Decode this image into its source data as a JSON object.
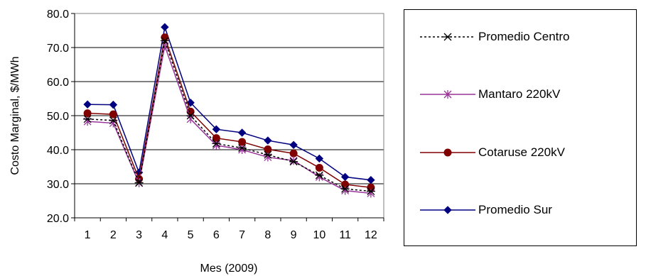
{
  "chart_data": {
    "type": "line",
    "xlabel": "Mes (2009)",
    "ylabel": "Costo Marginal, $/MWh",
    "categories": [
      "1",
      "2",
      "3",
      "4",
      "5",
      "6",
      "7",
      "8",
      "9",
      "10",
      "11",
      "12"
    ],
    "ylim": [
      20.0,
      80.0
    ],
    "yticks": [
      "20.0",
      "30.0",
      "40.0",
      "50.0",
      "60.0",
      "70.0",
      "80.0"
    ],
    "grid": "horizontal",
    "legend_position": "right",
    "series": [
      {
        "name": "Promedio Centro",
        "color": "#000000",
        "marker": "x-star",
        "dashed": true,
        "values": [
          49.0,
          48.6,
          30.3,
          72.0,
          50.0,
          41.8,
          40.5,
          38.5,
          36.5,
          32.5,
          28.5,
          27.8
        ]
      },
      {
        "name": "Mantaro 220kV",
        "color": "#993399",
        "marker": "asterisk",
        "dashed": false,
        "values": [
          48.3,
          47.8,
          30.2,
          70.5,
          49.0,
          41.3,
          40.0,
          37.8,
          36.8,
          32.0,
          28.0,
          27.2
        ]
      },
      {
        "name": "Cotaruse 220kV",
        "color": "#800000",
        "marker": "circle",
        "dashed": false,
        "values": [
          50.7,
          50.4,
          31.4,
          73.0,
          51.2,
          43.4,
          42.3,
          40.1,
          38.9,
          34.7,
          29.8,
          28.9
        ]
      },
      {
        "name": "Promedio Sur",
        "color": "#000080",
        "marker": "diamond",
        "dashed": false,
        "values": [
          53.3,
          53.2,
          33.3,
          76.0,
          53.8,
          46.0,
          45.0,
          42.7,
          41.4,
          37.4,
          32.0,
          31.1
        ]
      }
    ]
  }
}
